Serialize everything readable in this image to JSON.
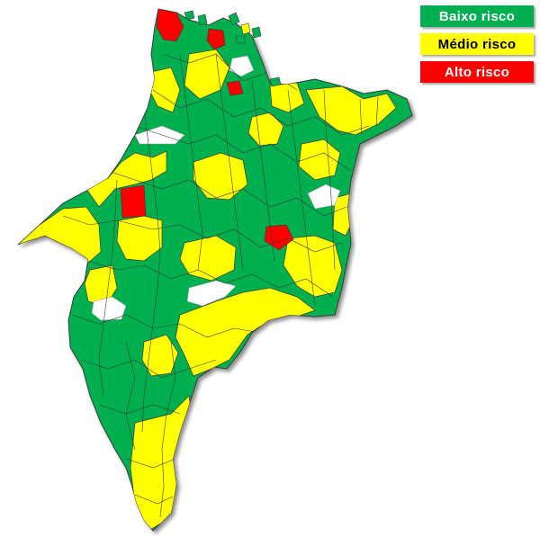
{
  "legend": {
    "items": [
      {
        "label": "Baixo risco",
        "color": "#00b050",
        "text_color": "#ffffff"
      },
      {
        "label": "Médio risco",
        "color": "#ffff00",
        "text_color": "#000000"
      },
      {
        "label": "Alto risco",
        "color": "#ff0000",
        "text_color": "#ffffff"
      }
    ]
  },
  "colors": {
    "low": "#00b050",
    "medium": "#ffff00",
    "high": "#ff0000",
    "no_data": "#ffffff",
    "border": "#3a3a3a"
  }
}
